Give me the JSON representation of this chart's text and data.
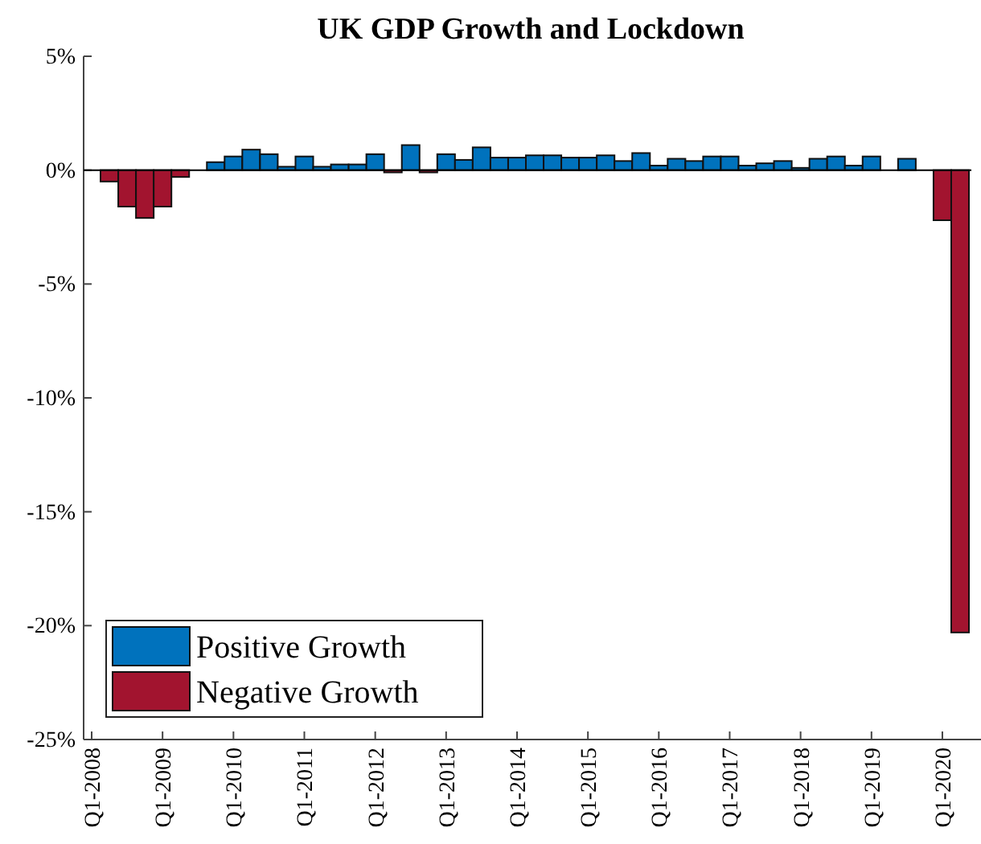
{
  "chart_data": {
    "type": "bar",
    "title": "UK GDP Growth and Lockdown",
    "categories": [
      "Q1-2008",
      null,
      null,
      null,
      "Q1-2009",
      null,
      null,
      null,
      "Q1-2010",
      null,
      null,
      null,
      "Q1-2011",
      null,
      null,
      null,
      "Q1-2012",
      null,
      null,
      null,
      "Q1-2013",
      null,
      null,
      null,
      "Q1-2014",
      null,
      null,
      null,
      "Q1-2015",
      null,
      null,
      null,
      "Q1-2016",
      null,
      null,
      null,
      "Q1-2017",
      null,
      null,
      null,
      "Q1-2018",
      null,
      null,
      null,
      "Q1-2019",
      null,
      null,
      null,
      "Q1-2020",
      null
    ],
    "series": [
      {
        "name": "Positive Growth",
        "color": "#0072bd",
        "values": [
          0,
          null,
          null,
          null,
          null,
          null,
          0,
          0.35,
          0.6,
          0.9,
          0.7,
          0.15,
          0.6,
          0.15,
          0.25,
          0.25,
          0.7,
          null,
          1.1,
          null,
          0.7,
          0.45,
          1.0,
          0.55,
          0.55,
          0.65,
          0.65,
          0.55,
          0.55,
          0.65,
          0.4,
          0.75,
          0.2,
          0.5,
          0.4,
          0.6,
          0.6,
          0.2,
          0.3,
          0.4,
          0.1,
          0.5,
          0.6,
          0.2,
          0.6,
          0,
          0.5,
          0,
          null,
          null
        ]
      },
      {
        "name": "Negative Growth",
        "color": "#a2142f",
        "values": [
          null,
          -0.5,
          -1.6,
          -2.1,
          -1.6,
          -0.3,
          null,
          null,
          null,
          null,
          null,
          null,
          null,
          null,
          null,
          null,
          null,
          -0.1,
          null,
          -0.1,
          null,
          null,
          null,
          null,
          null,
          null,
          null,
          null,
          null,
          null,
          null,
          null,
          null,
          null,
          null,
          null,
          null,
          null,
          null,
          null,
          null,
          null,
          null,
          null,
          null,
          null,
          null,
          null,
          -2.2,
          -20.3
        ]
      }
    ],
    "ylim": [
      -25,
      5
    ],
    "yticks": [
      {
        "value": 5,
        "label": "5%"
      },
      {
        "value": 0,
        "label": "0%"
      },
      {
        "value": -5,
        "label": "-5%"
      },
      {
        "value": -10,
        "label": "-10%"
      },
      {
        "value": -15,
        "label": "-15%"
      },
      {
        "value": -20,
        "label": "-20%"
      },
      {
        "value": -25,
        "label": "-25%"
      }
    ],
    "legend": "bottom left"
  }
}
